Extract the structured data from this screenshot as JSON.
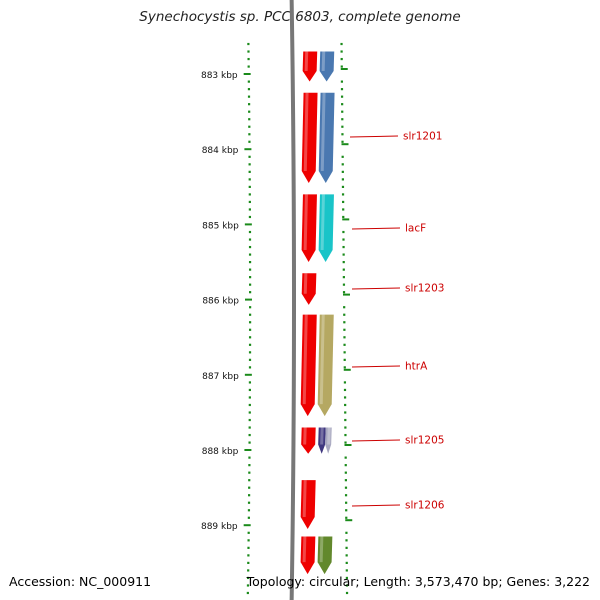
{
  "title": "Synechocystis sp. PCC 6803, complete genome",
  "footer": {
    "accession": "Accession: NC_000911",
    "summary": "Topology: circular; Length: 3,573,470 bp; Genes: 3,222"
  },
  "scale": {
    "unit": "kbp",
    "ticks": [
      883,
      884,
      885,
      886,
      887,
      888,
      889
    ]
  },
  "colors": {
    "backbone": "#777777",
    "scale_tick": "#1a8a1a",
    "label_text": "#cc0000",
    "label_line": "#cc0000"
  },
  "gene_labels": [
    "slr1201",
    "lacF",
    "slr1203",
    "htrA",
    "slr1205",
    "slr1206"
  ],
  "features": {
    "red": [
      {
        "start": 882.7,
        "end": 883.1,
        "color": "#ee0000"
      },
      {
        "start": 883.25,
        "end": 884.45,
        "color": "#ee0000"
      },
      {
        "start": 884.6,
        "end": 885.5,
        "color": "#ee0000"
      },
      {
        "start": 885.65,
        "end": 886.07,
        "color": "#ee0000"
      },
      {
        "start": 886.2,
        "end": 887.55,
        "color": "#ee0000"
      },
      {
        "start": 887.7,
        "end": 888.05,
        "color": "#ee0000"
      },
      {
        "start": 888.4,
        "end": 889.05,
        "color": "#ee0000"
      },
      {
        "start": 889.15,
        "end": 889.65,
        "color": "#ee0000"
      }
    ],
    "colored": [
      {
        "start": 882.7,
        "end": 883.1,
        "color": "#4a78b0"
      },
      {
        "start": 883.25,
        "end": 884.45,
        "color": "#4a78b0"
      },
      {
        "start": 884.6,
        "end": 885.5,
        "color": "#19c4c8"
      },
      {
        "start": 886.2,
        "end": 887.55,
        "color": "#b5a862"
      },
      {
        "start": 887.7,
        "end": 888.05,
        "color": "#403880"
      },
      {
        "start": 887.7,
        "end": 888.05,
        "color": "#a8a8c0"
      },
      {
        "start": 889.15,
        "end": 889.65,
        "color": "#62882c"
      }
    ]
  }
}
